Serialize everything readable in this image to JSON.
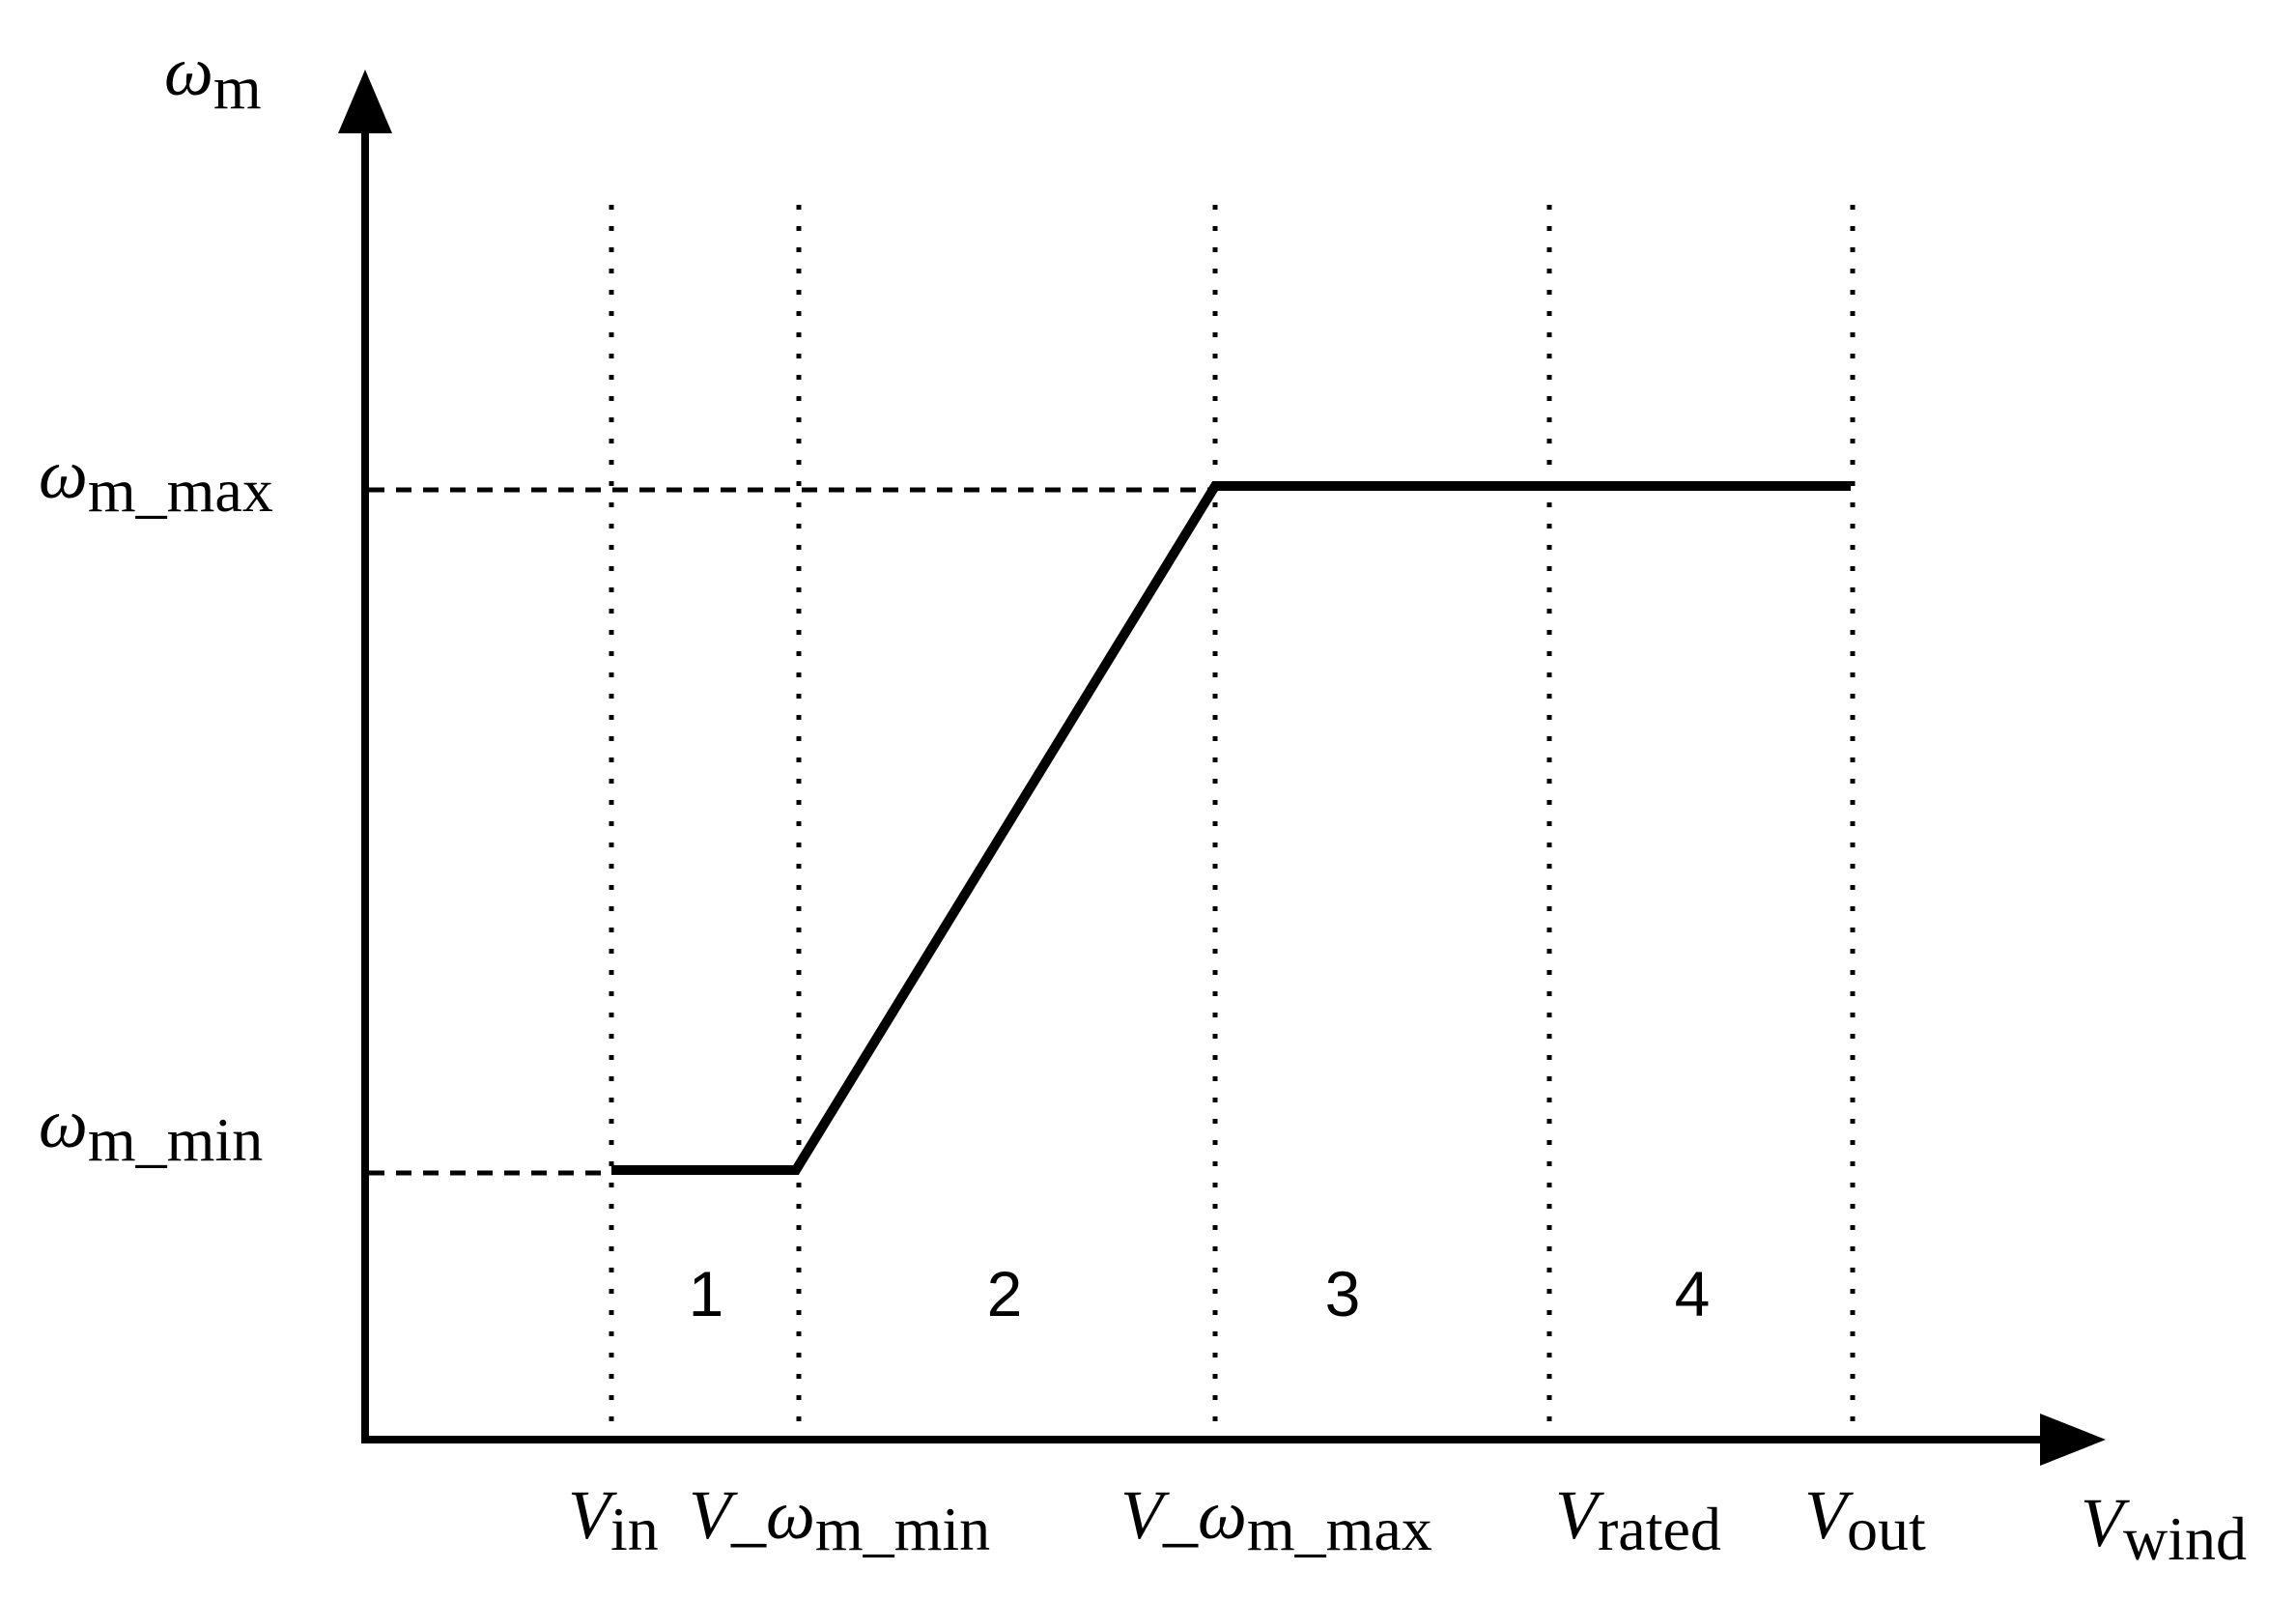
{
  "axes": {
    "y_label": {
      "symbol": "ω",
      "sub": "m"
    },
    "x_label": {
      "symbol": "V",
      "sub": "wind"
    }
  },
  "y_ticks": [
    {
      "symbol": "ω",
      "sub": "m_max"
    },
    {
      "symbol": "ω",
      "sub": "m_min"
    }
  ],
  "x_ticks": [
    {
      "symbol": "V",
      "sub": "in"
    },
    {
      "prefix": "V_",
      "symbol": "ω",
      "sub": "m_min"
    },
    {
      "prefix": "V_",
      "symbol": "ω",
      "sub": "m_max"
    },
    {
      "symbol": "V",
      "sub": "rated"
    },
    {
      "symbol": "V",
      "sub": "out"
    }
  ],
  "regions": [
    "1",
    "2",
    "3",
    "4"
  ],
  "curve": {
    "description_points": [
      {
        "x": "V_in",
        "y": "ω_m_min"
      },
      {
        "x": "V_ω_m_min",
        "y": "ω_m_min"
      },
      {
        "x": "V_ω_m_max",
        "y": "ω_m_max"
      },
      {
        "x": "V_out",
        "y": "ω_m_max"
      }
    ]
  },
  "colors": {
    "line": "#000000",
    "background": "#ffffff"
  }
}
